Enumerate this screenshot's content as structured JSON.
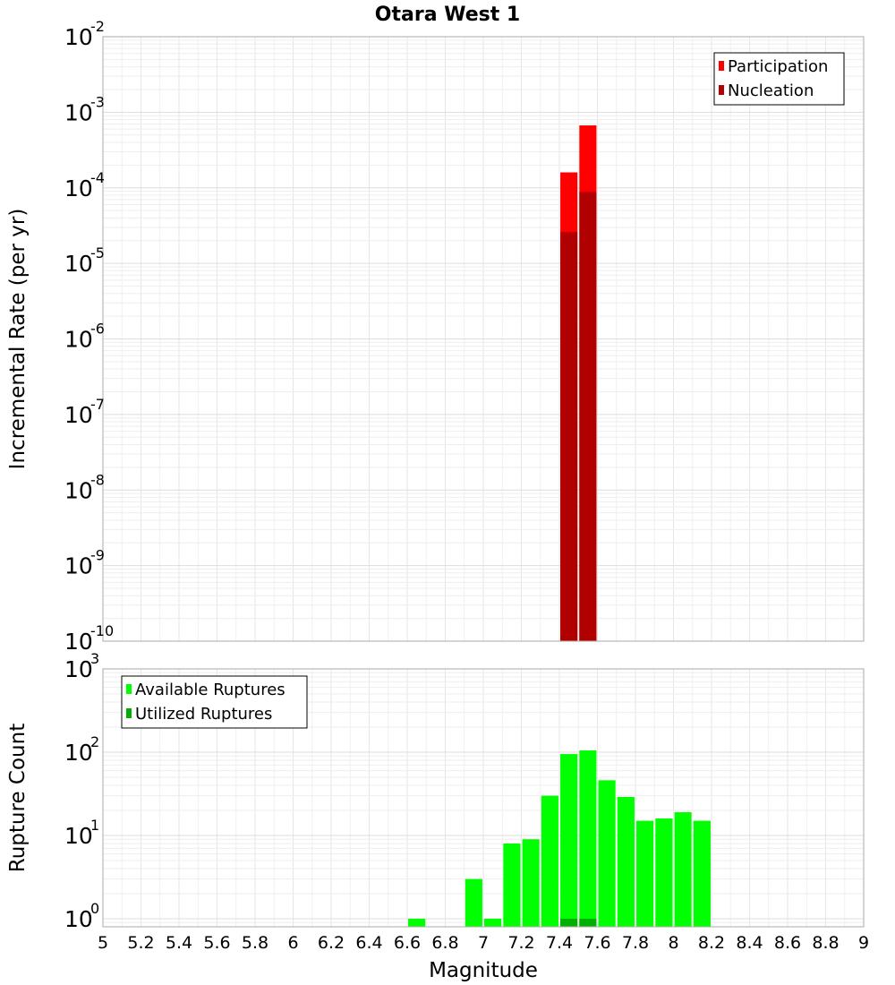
{
  "chart_data": [
    {
      "type": "bar",
      "title": "Otara West 1",
      "xlabel": "Magnitude",
      "ylabel": "Incremental Rate (per yr)",
      "yscale": "log",
      "xlim": [
        5,
        9
      ],
      "ylim": [
        1e-10,
        0.01
      ],
      "y_tick_exponents": [
        -10,
        -9,
        -8,
        -7,
        -6,
        -5,
        -4,
        -3,
        -2
      ],
      "legend_position": "top-right",
      "series": [
        {
          "name": "Participation",
          "color": "#ff0000",
          "x": [
            7.45,
            7.55
          ],
          "values": [
            0.00016,
            0.00067
          ]
        },
        {
          "name": "Nucleation",
          "color": "#b00000",
          "x": [
            7.45,
            7.55
          ],
          "values": [
            2.6e-05,
            8.8e-05
          ]
        }
      ]
    },
    {
      "type": "bar",
      "title": "",
      "xlabel": "Magnitude",
      "ylabel": "Rupture Count",
      "yscale": "log",
      "xlim": [
        5,
        9
      ],
      "ylim": [
        0.8,
        1000
      ],
      "y_tick_exponents": [
        0,
        1,
        2,
        3
      ],
      "x_ticks": [
        "5",
        "5.2",
        "5.4",
        "5.6",
        "5.8",
        "6",
        "6.2",
        "6.4",
        "6.6",
        "6.8",
        "7",
        "7.2",
        "7.4",
        "7.6",
        "7.8",
        "8",
        "8.2",
        "8.4",
        "8.6",
        "8.8",
        "9"
      ],
      "legend_position": "top-left",
      "series": [
        {
          "name": "Available Ruptures",
          "color": "#00ff00",
          "x": [
            6.65,
            6.95,
            7.05,
            7.15,
            7.25,
            7.35,
            7.45,
            7.55,
            7.65,
            7.75,
            7.85,
            7.95,
            8.05,
            8.15
          ],
          "values": [
            1,
            3,
            1,
            8,
            9,
            30,
            95,
            105,
            46,
            29,
            15,
            16,
            19,
            15
          ]
        },
        {
          "name": "Utilized Ruptures",
          "color": "#00b000",
          "x": [
            7.45,
            7.55
          ],
          "values": [
            1,
            1
          ]
        }
      ]
    }
  ]
}
